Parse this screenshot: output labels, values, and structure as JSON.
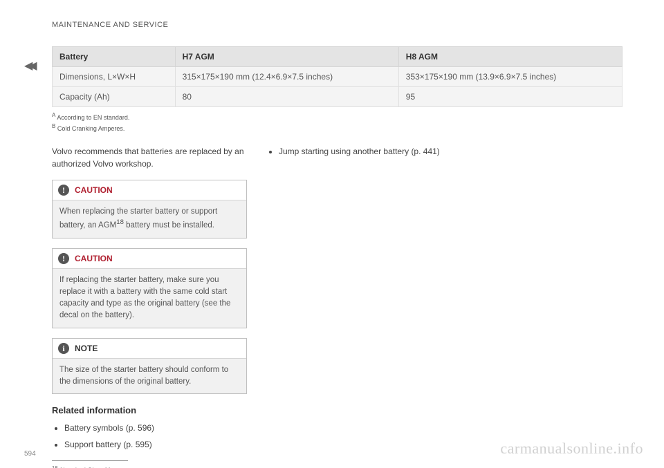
{
  "section_header": "MAINTENANCE AND SERVICE",
  "continuation_arrows": "◀◀",
  "table": {
    "headers": [
      "Battery",
      "H7 AGM",
      "H8 AGM"
    ],
    "rows": [
      [
        "Dimensions, L×W×H",
        "315×175×190 mm (12.4×6.9×7.5 inches)",
        "353×175×190 mm (13.9×6.9×7.5 inches)"
      ],
      [
        "Capacity (Ah)",
        "80",
        "95"
      ]
    ],
    "header_bg": "#e4e4e4",
    "row_bg": "#f4f4f4",
    "border_color": "#d5d5d5"
  },
  "table_footnotes": {
    "a": "According to EN standard.",
    "b": "Cold Cranking Amperes."
  },
  "intro_text": "Volvo recommends that batteries are replaced by an authorized Volvo workshop.",
  "callouts": [
    {
      "type": "caution",
      "icon": "!",
      "label": "CAUTION",
      "body_before": "When replacing the starter battery or support battery, an AGM",
      "sup": "18",
      "body_after": " battery must be installed.",
      "label_color": "#b02030"
    },
    {
      "type": "caution",
      "icon": "!",
      "label": "CAUTION",
      "body": "If replacing the starter battery, make sure you replace it with a battery with the same cold start capacity and type as the original battery (see the decal on the battery).",
      "label_color": "#b02030"
    },
    {
      "type": "note",
      "icon": "i",
      "label": "NOTE",
      "body": "The size of the starter battery should conform to the dimensions of the original battery.",
      "label_color": "#333333"
    }
  ],
  "related": {
    "heading": "Related information",
    "items": [
      "Battery symbols (p. 596)",
      "Support battery (p. 595)"
    ]
  },
  "right_column_item": "Jump starting using another battery (p. 441)",
  "bottom_footnote": {
    "num": "18",
    "text": "Absorbed Glass Mat."
  },
  "page_number": "594",
  "watermark": "carmanualsonline.info"
}
